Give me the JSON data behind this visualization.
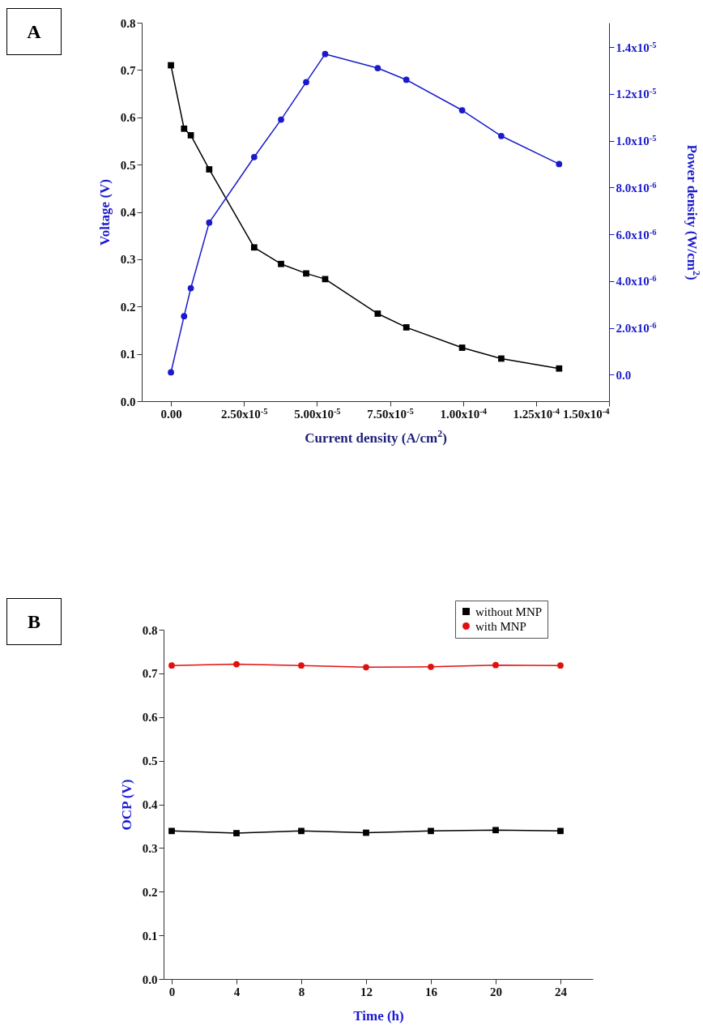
{
  "chart_data": [
    {
      "type": "line",
      "annotations": [
        "A"
      ],
      "xlabel": "Current density (A/cm$^{2}$)",
      "ylabel": "Voltage (V)",
      "y2label": "Power density (W/cm$^{2}$)",
      "x": [
        0,
        4.5e-06,
        6.8e-06,
        1.31e-05,
        2.85e-05,
        3.77e-05,
        4.63e-05,
        5.28e-05,
        7.08e-05,
        8.06e-05,
        9.97e-05,
        0.0001131,
        0.0001329
      ],
      "series": [
        {
          "color": "#000000",
          "marker": "square",
          "values": [
            0.71,
            0.576,
            0.562,
            0.49,
            0.325,
            0.29,
            0.27,
            0.258,
            0.185,
            0.156,
            0.113,
            0.09,
            0.069
          ]
        },
        {
          "color": "#1a1acc",
          "marker": "circle",
          "axis": "y2",
          "values": [
            1e-07,
            2.5e-06,
            3.7e-06,
            6.5e-06,
            9.3e-06,
            1.09e-05,
            1.25e-05,
            1.37e-05,
            1.31e-05,
            1.26e-05,
            1.13e-05,
            1.02e-05,
            9e-06
          ]
        }
      ],
      "xlim": [
        -1e-05,
        0.00015
      ],
      "xticks": [
        {
          "value": 0,
          "label": "0.00"
        },
        {
          "value": 2.5e-05,
          "label": "2.50x10$^{-5}$"
        },
        {
          "value": 5e-05,
          "label": "5.00x10$^{-5}$"
        },
        {
          "value": 7.5e-05,
          "label": "7.50x10$^{-5}$"
        },
        {
          "value": 0.0001,
          "label": "1.00x10$^{-4}$"
        },
        {
          "value": 0.000125,
          "label": "1.25x10$^{-4}$"
        },
        {
          "value": 0.00015,
          "label": "1.50x10$^{-4}$"
        }
      ],
      "ylim": [
        0,
        0.8
      ],
      "yticks": [
        {
          "value": 0,
          "label": "0.0"
        },
        0.1,
        0.2,
        0.3,
        0.4,
        0.5,
        0.6,
        0.7,
        0.8
      ],
      "y2lim": [
        -1.13e-06,
        1.504e-05
      ],
      "y2ticks": [
        {
          "value": 0,
          "label": "0.0"
        },
        {
          "value": 2e-06,
          "label": "2.0x10$^{-6}$"
        },
        {
          "value": 4e-06,
          "label": "4.0x10$^{-6}$"
        },
        {
          "value": 6e-06,
          "label": "6.0x10$^{-6}$"
        },
        {
          "value": 8e-06,
          "label": "8.0x10$^{-6}$"
        },
        {
          "value": 1e-05,
          "label": "1.0x10$^{-5}$"
        },
        {
          "value": 1.2e-05,
          "label": "1.2x10$^{-5}$"
        },
        {
          "value": 1.4e-05,
          "label": "1.4x10$^{-5}$"
        }
      ],
      "line_style": "solid"
    },
    {
      "type": "line",
      "annotations": [
        "B"
      ],
      "xlabel": "Time (h)",
      "ylabel": "OCP (V)",
      "x": [
        0,
        4,
        8,
        12,
        16,
        20,
        24
      ],
      "series": [
        {
          "name": "without MNP",
          "color": "#000000",
          "marker": "square",
          "values": [
            0.339,
            0.334,
            0.339,
            0.335,
            0.339,
            0.341,
            0.339
          ]
        },
        {
          "name": "with MNP",
          "color": "#e01010",
          "marker": "circle",
          "values": [
            0.718,
            0.721,
            0.718,
            0.714,
            0.715,
            0.719,
            0.718
          ]
        }
      ],
      "xlim": [
        -0.5,
        26
      ],
      "xticks": [
        0,
        4,
        8,
        12,
        16,
        20,
        24
      ],
      "ylim": [
        0,
        0.8
      ],
      "yticks": [
        {
          "value": 0,
          "label": "0.0"
        },
        0.1,
        0.2,
        0.3,
        0.4,
        0.5,
        0.6,
        0.7,
        0.8
      ],
      "line_style": "solid",
      "legend": "top right"
    }
  ]
}
